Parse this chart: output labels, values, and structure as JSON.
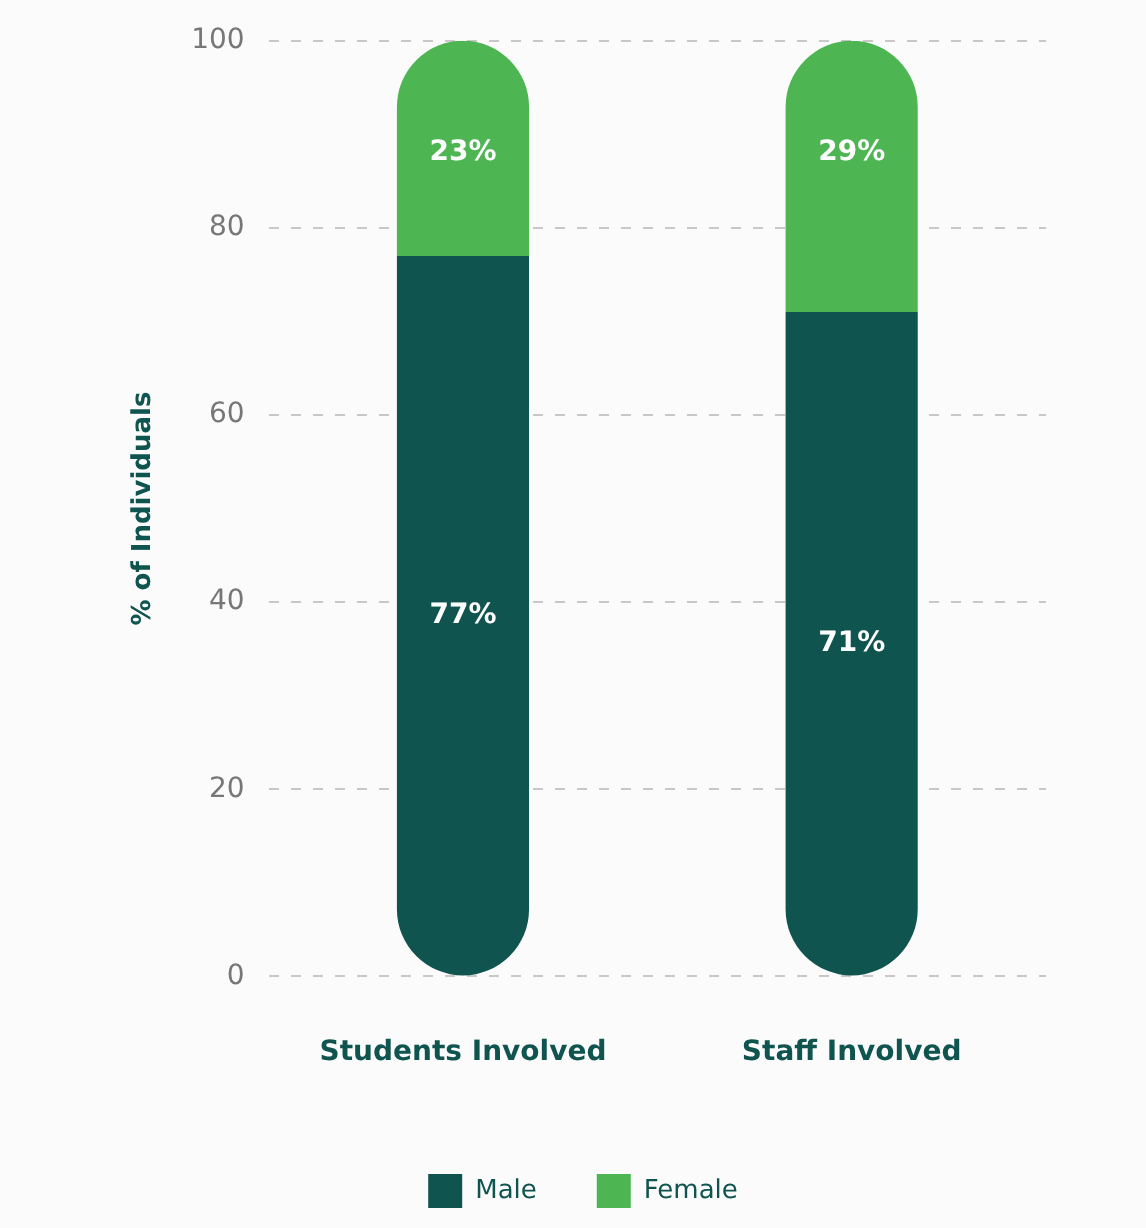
{
  "chart_data": {
    "type": "bar",
    "stacked": true,
    "ylabel": "% of Individuals",
    "categories": [
      "Students Involved",
      "Staff Involved"
    ],
    "series": [
      {
        "name": "Male",
        "color": "#0f544f",
        "values": [
          77,
          71
        ],
        "value_labels": [
          "77%",
          "71%"
        ]
      },
      {
        "name": "Female",
        "color": "#4db552",
        "values": [
          23,
          29
        ],
        "value_labels": [
          "23%",
          "29%"
        ]
      }
    ],
    "ylim": [
      0,
      100
    ],
    "yticks": [
      0,
      20,
      40,
      60,
      80,
      100
    ],
    "grid": "y",
    "legend": "bottom"
  }
}
